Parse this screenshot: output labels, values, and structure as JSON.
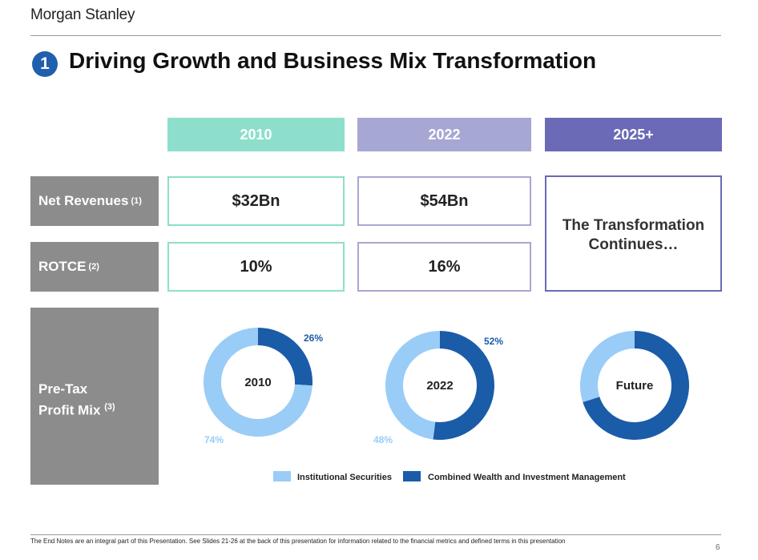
{
  "header": {
    "brand": "Morgan Stanley",
    "badge_number": "1",
    "title": "Driving Growth and Business Mix Transformation"
  },
  "columns": [
    {
      "year": "2010",
      "color": "#8ddfcb"
    },
    {
      "year": "2022",
      "color": "#a7a7d4"
    },
    {
      "year": "2025+",
      "color": "#6a6ab6"
    }
  ],
  "rows": {
    "net_revenues": {
      "label": "Net Revenues",
      "note": "(1)",
      "values": [
        "$32Bn",
        "$54Bn"
      ]
    },
    "rotce": {
      "label": "ROTCE",
      "note": "(2)",
      "values": [
        "10%",
        "16%"
      ]
    },
    "profit_mix": {
      "label_line1": "Pre-Tax",
      "label_line2": "Profit Mix",
      "note": "(3)"
    }
  },
  "future_text": {
    "line1": "The Transformation",
    "line2": "Continues…"
  },
  "colors": {
    "institutional": "#99ccf7",
    "wealth": "#1a5ca8",
    "row_label_bg": "#8c8c8c"
  },
  "chart_data": [
    {
      "type": "pie",
      "center_label": "2010",
      "categories": [
        "Institutional Securities",
        "Combined Wealth and Investment Management"
      ],
      "values": [
        74,
        26
      ],
      "labels": [
        "74%",
        "26%"
      ]
    },
    {
      "type": "pie",
      "center_label": "2022",
      "categories": [
        "Institutional Securities",
        "Combined Wealth and Investment Management"
      ],
      "values": [
        48,
        52
      ],
      "labels": [
        "48%",
        "52%"
      ]
    },
    {
      "type": "pie",
      "center_label": "Future",
      "categories": [
        "Institutional Securities",
        "Combined Wealth and Investment Management"
      ],
      "values": [
        30,
        70
      ],
      "labels": [
        "",
        ""
      ]
    }
  ],
  "legend": {
    "items": [
      "Institutional Securities",
      "Combined Wealth and Investment Management"
    ]
  },
  "footer": {
    "note": "The End Notes are an integral part of this Presentation. See Slides 21-26 at the back of this presentation for information related to the financial metrics and defined terms in this presentation",
    "page": "6"
  }
}
